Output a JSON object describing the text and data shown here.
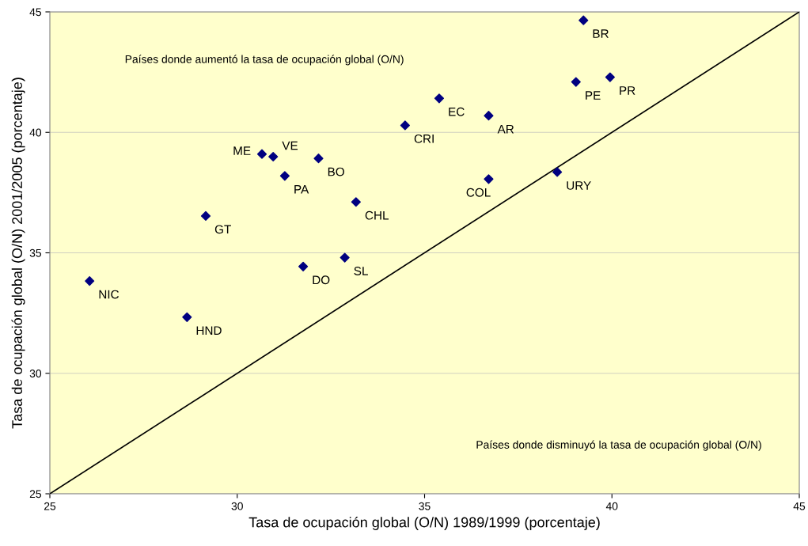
{
  "chart_data": {
    "type": "scatter",
    "xlabel": "Tasa de ocupación global (O/N) 1989/1999 (porcentaje)",
    "ylabel": "Tasa de ocupación global (O/N) 2001/2005 (porcentaje)",
    "xlim": [
      25,
      45
    ],
    "ylim": [
      25,
      45
    ],
    "xticks": [
      25,
      30,
      35,
      40,
      45
    ],
    "yticks": [
      25,
      30,
      35,
      40,
      45
    ],
    "grid": "y",
    "legend": false,
    "series": [
      {
        "color": "#000080",
        "marker": "diamond",
        "x": [
          26.06,
          28.66,
          29.16,
          30.66,
          30.96,
          31.27,
          32.17,
          33.17,
          31.76,
          32.87,
          34.48,
          35.39,
          36.71,
          36.71,
          38.54,
          39.04,
          39.24,
          39.95
        ],
        "values": [
          33.83,
          32.33,
          36.53,
          39.1,
          38.99,
          38.19,
          38.92,
          37.11,
          34.43,
          34.8,
          40.29,
          41.41,
          40.69,
          38.06,
          38.35,
          42.09,
          44.65,
          42.29
        ]
      },
      {
        "type": "line",
        "color": "#000000",
        "marker": "none",
        "line_style": "solid",
        "x": [
          25,
          45
        ],
        "values": [
          25,
          45
        ]
      }
    ],
    "annotations": [
      "Países donde aumentó la tasa de ocupación global (O/N)",
      "Países donde disminuyó la tasa de ocupación global (O/N)",
      {
        "text": "NIC",
        "x": 26.06,
        "y": 33.83
      },
      {
        "text": "HND",
        "x": 28.66,
        "y": 32.33
      },
      {
        "text": "GT",
        "x": 29.16,
        "y": 36.53
      },
      {
        "text": "ME",
        "x": 30.66,
        "y": 39.1
      },
      {
        "text": "VE",
        "x": 30.96,
        "y": 38.99
      },
      {
        "text": "PA",
        "x": 31.27,
        "y": 38.19
      },
      {
        "text": "BO",
        "x": 32.17,
        "y": 38.92
      },
      {
        "text": "CHL",
        "x": 33.17,
        "y": 37.11
      },
      {
        "text": "DO",
        "x": 31.76,
        "y": 34.43
      },
      {
        "text": "SL",
        "x": 32.87,
        "y": 34.8
      },
      {
        "text": "CRI",
        "x": 34.48,
        "y": 40.29
      },
      {
        "text": "EC",
        "x": 35.39,
        "y": 41.41
      },
      {
        "text": "AR",
        "x": 36.71,
        "y": 40.69
      },
      {
        "text": "COL",
        "x": 36.71,
        "y": 38.06
      },
      {
        "text": "URY",
        "x": 38.54,
        "y": 38.35
      },
      {
        "text": "PE",
        "x": 39.04,
        "y": 42.09
      },
      {
        "text": "BR",
        "x": 39.24,
        "y": 44.65
      },
      {
        "text": "PR",
        "x": 39.95,
        "y": 42.29
      }
    ]
  }
}
